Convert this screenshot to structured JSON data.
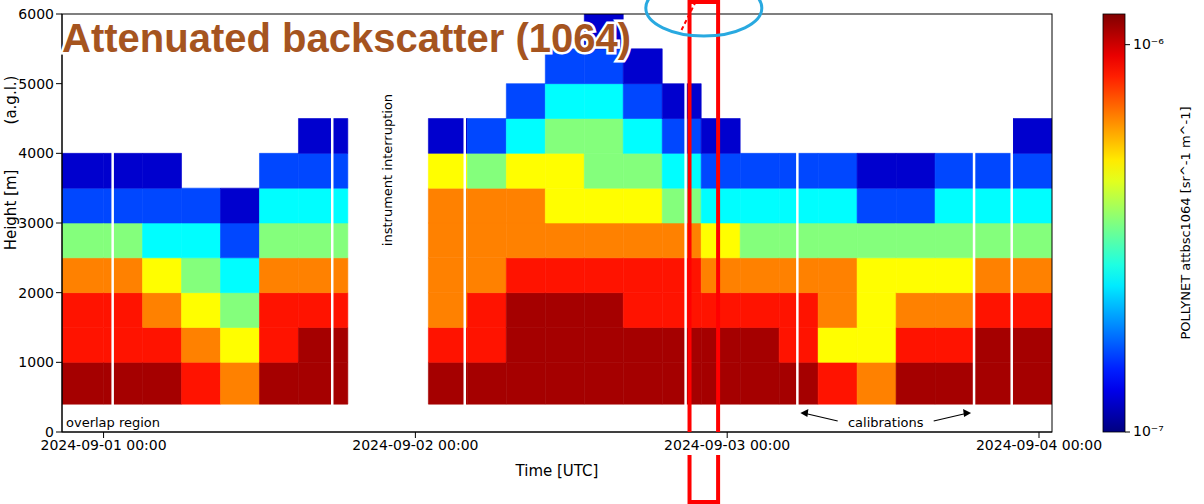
{
  "chart_data": {
    "type": "heatmap",
    "title": "Attenuated backscatter (1064)",
    "xlabel": "Time [UTC]",
    "ylabel": "Height [m]",
    "ylabel_note": "(a.g.l.)",
    "xlim": [
      -3.2,
      73
    ],
    "xticks": [
      {
        "value": 0,
        "label": "2024-09-01 00:00"
      },
      {
        "value": 24,
        "label": "2024-09-02 00:00"
      },
      {
        "value": 48,
        "label": "2024-09-03 00:00"
      },
      {
        "value": 72,
        "label": "2024-09-04 00:00"
      }
    ],
    "ylim": [
      0,
      6000
    ],
    "yticks": [
      0,
      1000,
      2000,
      3000,
      4000,
      5000,
      6000
    ],
    "grid": false,
    "x_edges": [
      -3.2,
      0,
      3,
      6,
      9,
      12,
      15,
      18.8,
      25,
      28,
      31,
      34,
      37,
      40,
      43,
      46,
      49,
      52,
      55,
      58,
      61,
      64,
      67,
      70,
      73
    ],
    "y_edges": [
      400,
      1000,
      1500,
      2000,
      2500,
      3000,
      3500,
      4000,
      4500,
      5000,
      5500,
      6000
    ],
    "cells": [
      [
        1.1e-06,
        8.5e-07,
        8.5e-07,
        6.5e-07,
        3.5e-07,
        1.6e-07,
        1.2e-07,
        null,
        null,
        null,
        null
      ],
      [
        1.1e-06,
        8.5e-07,
        8.5e-07,
        6.5e-07,
        3.5e-07,
        1.6e-07,
        1.2e-07,
        null,
        null,
        null,
        null
      ],
      [
        1.1e-06,
        8.5e-07,
        6.5e-07,
        4.8e-07,
        2.5e-07,
        1.6e-07,
        1.2e-07,
        null,
        null,
        null,
        null
      ],
      [
        8.5e-07,
        6.5e-07,
        4.8e-07,
        3.5e-07,
        2.5e-07,
        1.6e-07,
        null,
        null,
        null,
        null,
        null
      ],
      [
        6.5e-07,
        4.8e-07,
        3.5e-07,
        2.5e-07,
        1.6e-07,
        1.2e-07,
        null,
        null,
        null,
        null,
        null
      ],
      [
        1.1e-06,
        8.5e-07,
        8.5e-07,
        6.5e-07,
        3.5e-07,
        2.5e-07,
        1.6e-07,
        null,
        null,
        null,
        null
      ],
      [
        1.1e-06,
        1.1e-06,
        8.5e-07,
        6.5e-07,
        3.5e-07,
        2.5e-07,
        1.6e-07,
        1.2e-07,
        null,
        null,
        null
      ],
      [
        null,
        null,
        null,
        null,
        null,
        null,
        null,
        null,
        null,
        null,
        null
      ],
      [
        1.1e-06,
        8.5e-07,
        6.5e-07,
        6.5e-07,
        6.5e-07,
        6.5e-07,
        4.8e-07,
        1.2e-07,
        null,
        null,
        null
      ],
      [
        1.1e-06,
        8.5e-07,
        8.5e-07,
        6.5e-07,
        6.5e-07,
        6.5e-07,
        3.5e-07,
        1.6e-07,
        null,
        null,
        null
      ],
      [
        1.1e-06,
        1.1e-06,
        1.1e-06,
        8.5e-07,
        6.5e-07,
        6.5e-07,
        4.8e-07,
        2.5e-07,
        1.6e-07,
        null,
        null
      ],
      [
        1.1e-06,
        1.1e-06,
        1.1e-06,
        8.5e-07,
        6.5e-07,
        4.8e-07,
        4.8e-07,
        3.5e-07,
        2.5e-07,
        1.6e-07,
        null
      ],
      [
        1.1e-06,
        1.1e-06,
        1.1e-06,
        8.5e-07,
        6.5e-07,
        4.8e-07,
        3.5e-07,
        3.5e-07,
        2.5e-07,
        1.6e-07,
        1.2e-07
      ],
      [
        1.1e-06,
        1.1e-06,
        8.5e-07,
        8.5e-07,
        6.5e-07,
        4.8e-07,
        3.5e-07,
        2.5e-07,
        1.6e-07,
        1.2e-07,
        null
      ],
      [
        1.1e-06,
        1.1e-06,
        8.5e-07,
        8.5e-07,
        6.5e-07,
        3.5e-07,
        2.5e-07,
        1.6e-07,
        1.2e-07,
        null,
        null
      ],
      [
        1.1e-06,
        1.1e-06,
        8.5e-07,
        6.5e-07,
        4.8e-07,
        2.5e-07,
        1.6e-07,
        1.2e-07,
        null,
        null,
        null
      ],
      [
        1.1e-06,
        1.1e-06,
        8.5e-07,
        6.5e-07,
        3.5e-07,
        2.5e-07,
        1.6e-07,
        null,
        null,
        null,
        null
      ],
      [
        1.1e-06,
        8.5e-07,
        8.5e-07,
        6.5e-07,
        3.5e-07,
        2.5e-07,
        1.6e-07,
        null,
        null,
        null,
        null
      ],
      [
        8.5e-07,
        4.8e-07,
        6.5e-07,
        6.5e-07,
        3.5e-07,
        2.5e-07,
        1.6e-07,
        null,
        null,
        null,
        null
      ],
      [
        6.5e-07,
        4.8e-07,
        4.8e-07,
        4.8e-07,
        3.5e-07,
        1.6e-07,
        1.2e-07,
        null,
        null,
        null,
        null
      ],
      [
        1.1e-06,
        8.5e-07,
        6.5e-07,
        4.8e-07,
        3.5e-07,
        1.6e-07,
        1.2e-07,
        null,
        null,
        null,
        null
      ],
      [
        1.1e-06,
        8.5e-07,
        6.5e-07,
        4.8e-07,
        3.5e-07,
        2.5e-07,
        1.6e-07,
        null,
        null,
        null,
        null
      ],
      [
        1.1e-06,
        1.1e-06,
        8.5e-07,
        6.5e-07,
        3.5e-07,
        2.5e-07,
        1.6e-07,
        null,
        null,
        null,
        null
      ],
      [
        1.1e-06,
        1.1e-06,
        8.5e-07,
        6.5e-07,
        3.5e-07,
        2.5e-07,
        1.6e-07,
        1.2e-07,
        null,
        null,
        null
      ]
    ],
    "colorbar": {
      "label": "POLLYNET attbsc1064 [sr^-1 m^-1]",
      "range": [
        1e-07,
        1.2e-06
      ],
      "ticks": [
        {
          "value": 1e-07,
          "label": "10⁻⁷"
        },
        {
          "value": 1e-06,
          "label": "10⁻⁶"
        }
      ],
      "log": true
    },
    "calibrations": [
      0.7,
      17.6,
      27.8,
      44.8,
      53.4,
      67.0,
      69.9
    ],
    "annotations": {
      "interruption": "instrument interruption",
      "overlap": "overlap region",
      "calibrations": "calibrations"
    },
    "highlight": {
      "x": [
        45.1,
        47.3
      ],
      "color": "#ff0000"
    }
  }
}
